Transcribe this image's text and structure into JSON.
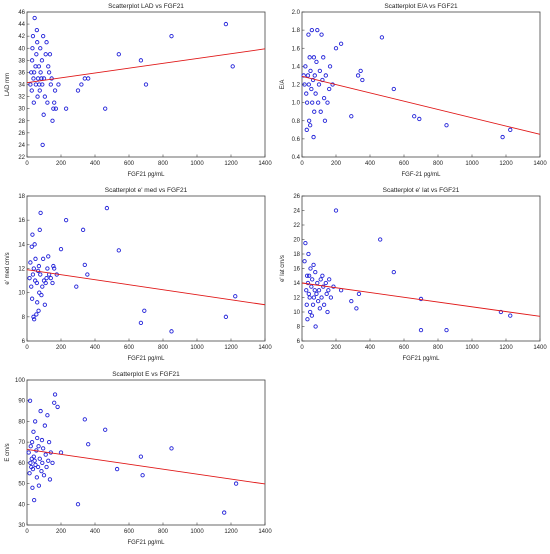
{
  "chart_data": [
    {
      "type": "scatter",
      "title": "Scatterplot LAD vs FGF21",
      "xlabel": "FGF21 pg/mL",
      "ylabel": "LAD mm",
      "xlim": [
        0,
        1400
      ],
      "ylim": [
        22,
        46
      ],
      "xticks": [
        0,
        200,
        400,
        600,
        800,
        1000,
        1200,
        1400
      ],
      "yticks": [
        22,
        24,
        26,
        28,
        30,
        32,
        34,
        36,
        38,
        40,
        42,
        44,
        46
      ],
      "decimals": 0,
      "fit": [
        [
          0,
          34.3
        ],
        [
          1400,
          39.9
        ]
      ],
      "points": [
        [
          20,
          34
        ],
        [
          25,
          36
        ],
        [
          28,
          33
        ],
        [
          30,
          38
        ],
        [
          32,
          40
        ],
        [
          35,
          42
        ],
        [
          38,
          35
        ],
        [
          40,
          31
        ],
        [
          42,
          36
        ],
        [
          45,
          45
        ],
        [
          50,
          37
        ],
        [
          52,
          34
        ],
        [
          55,
          39
        ],
        [
          58,
          43
        ],
        [
          60,
          41
        ],
        [
          62,
          32
        ],
        [
          65,
          35
        ],
        [
          70,
          37
        ],
        [
          72,
          34
        ],
        [
          75,
          33
        ],
        [
          78,
          40
        ],
        [
          80,
          36
        ],
        [
          85,
          35
        ],
        [
          88,
          38
        ],
        [
          90,
          34
        ],
        [
          92,
          24
        ],
        [
          95,
          42
        ],
        [
          98,
          29
        ],
        [
          100,
          35
        ],
        [
          105,
          32
        ],
        [
          110,
          39
        ],
        [
          115,
          41
        ],
        [
          120,
          31
        ],
        [
          125,
          37
        ],
        [
          130,
          36
        ],
        [
          135,
          39
        ],
        [
          140,
          34
        ],
        [
          145,
          35
        ],
        [
          150,
          28
        ],
        [
          155,
          30
        ],
        [
          160,
          31
        ],
        [
          165,
          33
        ],
        [
          170,
          30
        ],
        [
          185,
          34
        ],
        [
          230,
          30
        ],
        [
          300,
          33
        ],
        [
          320,
          34
        ],
        [
          340,
          35
        ],
        [
          360,
          35
        ],
        [
          460,
          30
        ],
        [
          540,
          39
        ],
        [
          670,
          38
        ],
        [
          700,
          34
        ],
        [
          850,
          42
        ],
        [
          1170,
          44
        ],
        [
          1210,
          37
        ]
      ]
    },
    {
      "type": "scatter",
      "title": "Scatterplot E/A vs FGF21",
      "xlabel": "FGF-21 pg/mL",
      "ylabel": "E/A",
      "xlim": [
        0,
        1400
      ],
      "ylim": [
        0.4,
        2.0
      ],
      "xticks": [
        0,
        200,
        400,
        600,
        800,
        1000,
        1200,
        1400
      ],
      "yticks": [
        0.4,
        0.6,
        0.8,
        1.0,
        1.2,
        1.4,
        1.6,
        1.8,
        2.0
      ],
      "decimals": 1,
      "fit": [
        [
          0,
          1.29
        ],
        [
          1400,
          0.65
        ]
      ],
      "points": [
        [
          10,
          1.3
        ],
        [
          15,
          1.2
        ],
        [
          20,
          1.4
        ],
        [
          25,
          1.1
        ],
        [
          28,
          0.7
        ],
        [
          30,
          1.0
        ],
        [
          35,
          1.3
        ],
        [
          38,
          1.75
        ],
        [
          40,
          1.2
        ],
        [
          42,
          0.8
        ],
        [
          45,
          1.5
        ],
        [
          48,
          0.75
        ],
        [
          50,
          1.35
        ],
        [
          55,
          1.15
        ],
        [
          58,
          1.8
        ],
        [
          60,
          1.0
        ],
        [
          65,
          1.25
        ],
        [
          68,
          0.62
        ],
        [
          70,
          1.5
        ],
        [
          72,
          0.9
        ],
        [
          75,
          1.3
        ],
        [
          80,
          1.1
        ],
        [
          85,
          1.45
        ],
        [
          90,
          1.8
        ],
        [
          95,
          1.0
        ],
        [
          100,
          1.2
        ],
        [
          105,
          1.35
        ],
        [
          110,
          0.9
        ],
        [
          115,
          1.75
        ],
        [
          120,
          1.25
        ],
        [
          125,
          1.5
        ],
        [
          130,
          1.05
        ],
        [
          135,
          0.8
        ],
        [
          140,
          1.3
        ],
        [
          150,
          1.0
        ],
        [
          160,
          1.15
        ],
        [
          165,
          1.4
        ],
        [
          180,
          1.2
        ],
        [
          200,
          1.6
        ],
        [
          230,
          1.65
        ],
        [
          290,
          0.85
        ],
        [
          330,
          1.3
        ],
        [
          345,
          1.35
        ],
        [
          355,
          1.25
        ],
        [
          470,
          1.72
        ],
        [
          540,
          1.15
        ],
        [
          660,
          0.85
        ],
        [
          690,
          0.82
        ],
        [
          850,
          0.75
        ],
        [
          1180,
          0.62
        ],
        [
          1225,
          0.7
        ]
      ]
    },
    {
      "type": "scatter",
      "title": "Scatterplot e' med vs FGF21",
      "xlabel": "FGF21 pg/mL",
      "ylabel": "e' med cm/s",
      "xlim": [
        0,
        1400
      ],
      "ylim": [
        6,
        18
      ],
      "xticks": [
        0,
        200,
        400,
        600,
        800,
        1000,
        1200,
        1400
      ],
      "yticks": [
        6,
        8,
        10,
        12,
        14,
        16,
        18
      ],
      "decimals": 0,
      "fit": [
        [
          0,
          11.9
        ],
        [
          1400,
          9.0
        ]
      ],
      "points": [
        [
          15,
          11.2
        ],
        [
          20,
          12.5
        ],
        [
          25,
          10.5
        ],
        [
          28,
          13.8
        ],
        [
          30,
          9.5
        ],
        [
          32,
          14.8
        ],
        [
          35,
          11.5
        ],
        [
          38,
          8.0
        ],
        [
          40,
          12.0
        ],
        [
          42,
          7.8
        ],
        [
          45,
          14.0
        ],
        [
          48,
          11.0
        ],
        [
          50,
          12.8
        ],
        [
          55,
          8.2
        ],
        [
          58,
          10.8
        ],
        [
          60,
          9.2
        ],
        [
          65,
          11.8
        ],
        [
          68,
          8.5
        ],
        [
          70,
          12.2
        ],
        [
          72,
          10.0
        ],
        [
          75,
          15.2
        ],
        [
          78,
          11.5
        ],
        [
          80,
          16.6
        ],
        [
          85,
          9.8
        ],
        [
          90,
          10.5
        ],
        [
          95,
          12.8
        ],
        [
          100,
          11.0
        ],
        [
          105,
          9.0
        ],
        [
          110,
          10.8
        ],
        [
          115,
          11.2
        ],
        [
          120,
          12.0
        ],
        [
          125,
          13.0
        ],
        [
          130,
          11.5
        ],
        [
          140,
          11.2
        ],
        [
          150,
          10.8
        ],
        [
          155,
          12.2
        ],
        [
          160,
          12.0
        ],
        [
          175,
          11.5
        ],
        [
          200,
          13.6
        ],
        [
          230,
          16.0
        ],
        [
          290,
          10.5
        ],
        [
          330,
          15.2
        ],
        [
          340,
          12.3
        ],
        [
          355,
          11.5
        ],
        [
          470,
          17.0
        ],
        [
          540,
          13.5
        ],
        [
          670,
          7.5
        ],
        [
          690,
          8.5
        ],
        [
          850,
          6.8
        ],
        [
          1170,
          8.0
        ],
        [
          1225,
          9.7
        ]
      ]
    },
    {
      "type": "scatter",
      "title": "Scatterplot e' lat vs FGF21",
      "xlabel": "FGF21 pg/mL",
      "ylabel": "e' lat cm/s",
      "xlim": [
        0,
        1400
      ],
      "ylim": [
        6,
        26
      ],
      "xticks": [
        0,
        200,
        400,
        600,
        800,
        1000,
        1200,
        1400
      ],
      "yticks": [
        6,
        8,
        10,
        12,
        14,
        16,
        18,
        20,
        22,
        24,
        26
      ],
      "decimals": 0,
      "fit": [
        [
          0,
          14.0
        ],
        [
          1400,
          9.4
        ]
      ],
      "points": [
        [
          15,
          17.0
        ],
        [
          20,
          19.5
        ],
        [
          25,
          13.0
        ],
        [
          28,
          11.0
        ],
        [
          30,
          15.0
        ],
        [
          32,
          9.0
        ],
        [
          35,
          14.0
        ],
        [
          38,
          18.0
        ],
        [
          40,
          12.5
        ],
        [
          42,
          15.0
        ],
        [
          45,
          12.0
        ],
        [
          48,
          10.0
        ],
        [
          50,
          16.0
        ],
        [
          55,
          13.5
        ],
        [
          58,
          9.5
        ],
        [
          60,
          14.5
        ],
        [
          65,
          11.0
        ],
        [
          68,
          16.5
        ],
        [
          70,
          12.0
        ],
        [
          75,
          13.0
        ],
        [
          78,
          15.5
        ],
        [
          80,
          8.0
        ],
        [
          85,
          12.5
        ],
        [
          90,
          14.0
        ],
        [
          95,
          11.5
        ],
        [
          100,
          13.0
        ],
        [
          105,
          10.5
        ],
        [
          110,
          14.5
        ],
        [
          115,
          12.0
        ],
        [
          120,
          15.0
        ],
        [
          125,
          13.5
        ],
        [
          130,
          11.0
        ],
        [
          140,
          14.0
        ],
        [
          145,
          12.5
        ],
        [
          150,
          10.0
        ],
        [
          155,
          13.0
        ],
        [
          160,
          14.5
        ],
        [
          170,
          12.0
        ],
        [
          185,
          13.5
        ],
        [
          200,
          24.0
        ],
        [
          230,
          13.0
        ],
        [
          290,
          11.5
        ],
        [
          320,
          10.5
        ],
        [
          335,
          12.5
        ],
        [
          460,
          20.0
        ],
        [
          540,
          15.5
        ],
        [
          700,
          11.8
        ],
        [
          700,
          7.5
        ],
        [
          850,
          7.5
        ],
        [
          1170,
          10.0
        ],
        [
          1225,
          9.5
        ]
      ]
    },
    {
      "type": "scatter",
      "title": "Scatterplot E vs FGF21",
      "xlabel": "FGF21 pg/mL",
      "ylabel": "E cm/s",
      "xlim": [
        0,
        1400
      ],
      "ylim": [
        30,
        100
      ],
      "xticks": [
        0,
        200,
        400,
        600,
        800,
        1000,
        1200,
        1400
      ],
      "yticks": [
        30,
        40,
        50,
        60,
        70,
        80,
        90,
        100
      ],
      "decimals": 0,
      "fit": [
        [
          0,
          66.5
        ],
        [
          1400,
          49.8
        ]
      ],
      "points": [
        [
          10,
          65
        ],
        [
          15,
          55
        ],
        [
          18,
          90
        ],
        [
          20,
          60
        ],
        [
          22,
          68
        ],
        [
          25,
          58
        ],
        [
          28,
          62
        ],
        [
          30,
          70
        ],
        [
          32,
          48
        ],
        [
          35,
          57
        ],
        [
          38,
          75
        ],
        [
          40,
          63
        ],
        [
          42,
          42
        ],
        [
          45,
          61
        ],
        [
          48,
          80
        ],
        [
          50,
          59
        ],
        [
          55,
          66
        ],
        [
          58,
          53
        ],
        [
          60,
          72
        ],
        [
          65,
          58
        ],
        [
          68,
          68
        ],
        [
          70,
          49
        ],
        [
          75,
          62
        ],
        [
          80,
          85
        ],
        [
          85,
          56
        ],
        [
          88,
          71
        ],
        [
          90,
          60
        ],
        [
          95,
          67
        ],
        [
          100,
          54
        ],
        [
          105,
          78
        ],
        [
          110,
          64
        ],
        [
          115,
          58
        ],
        [
          120,
          83
        ],
        [
          125,
          61
        ],
        [
          130,
          70
        ],
        [
          135,
          52
        ],
        [
          140,
          65
        ],
        [
          150,
          60
        ],
        [
          160,
          89
        ],
        [
          165,
          93
        ],
        [
          180,
          87
        ],
        [
          200,
          65
        ],
        [
          300,
          40
        ],
        [
          340,
          81
        ],
        [
          360,
          69
        ],
        [
          460,
          76
        ],
        [
          530,
          57
        ],
        [
          670,
          63
        ],
        [
          680,
          54
        ],
        [
          850,
          67
        ],
        [
          1160,
          36
        ],
        [
          1230,
          50
        ]
      ]
    }
  ]
}
